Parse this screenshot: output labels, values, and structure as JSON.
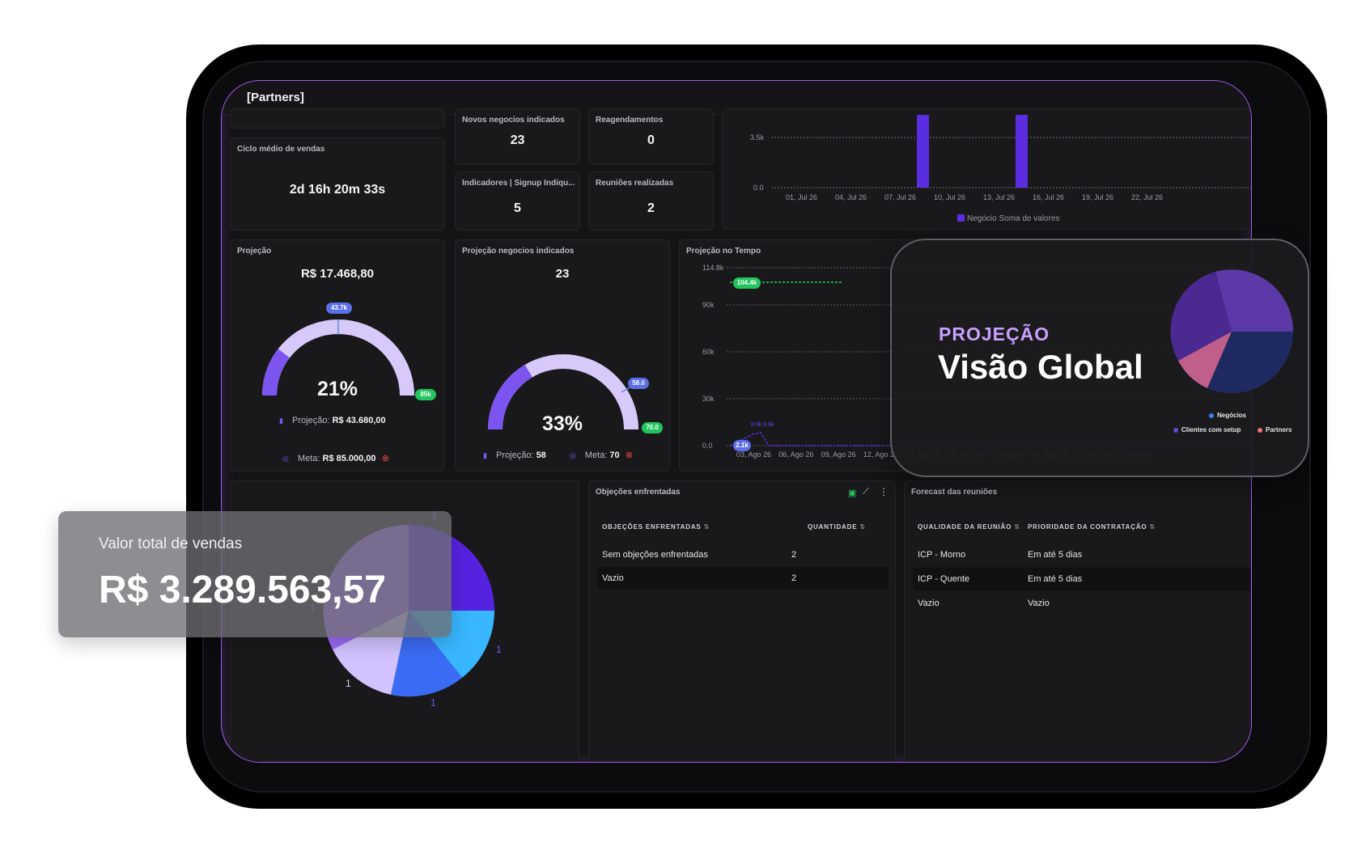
{
  "app": {
    "title": "[Partners]"
  },
  "kpis": {
    "ciclo_label": "Ciclo médio de vendas",
    "ciclo_value": "2d 16h 20m 33s",
    "novos_label": "Novos negocios indicados",
    "novos_value": "23",
    "reag_label": "Reagendamentos",
    "reag_value": "0",
    "ind_label": "Indicadores | Signup Indiqu...",
    "ind_value": "5",
    "reun_label": "Reuniões realizadas",
    "reun_value": "2"
  },
  "projecao": {
    "label": "Projeção",
    "value": "R$ 17.468,80",
    "percent": "21%",
    "pct_fill": 0.21,
    "marker_pill": "43.7k",
    "end_pill": "85k",
    "proj_label": "Projeção:",
    "proj_value": "R$ 43.680,00",
    "meta_label": "Meta:",
    "meta_value": "R$ 85.000,00"
  },
  "projecao_neg": {
    "label": "Projeção negocios indicados",
    "value": "23",
    "percent": "33%",
    "pct_fill": 0.33,
    "marker_pill": "58.0",
    "end_pill": "70.0",
    "proj_label": "Projeção:",
    "proj_value": "58",
    "meta_label": "Meta:",
    "meta_value": "70"
  },
  "proj_tempo": {
    "label": "Projeção no Tempo",
    "yticks": [
      "114.8k",
      "90k",
      "60k",
      "30k",
      "0.0"
    ],
    "xticks": [
      "03, Ago 26",
      "06, Ago 26",
      "09, Ago 26",
      "12, Ago 26",
      "15, Ago 26",
      "18, Ago 26",
      "21, Ago 26",
      "24, Ago 26",
      "27, Ago 26",
      "31, Ago 26"
    ],
    "pill_top": "104.4k",
    "pill_bottom": "2.1k",
    "small_labels": "8.9k 8.9k"
  },
  "top_chart": {
    "yticks": [
      "3.5k",
      "0.0"
    ],
    "xticks": [
      "01, Jul 26",
      "04, Jul 26",
      "07, Jul 26",
      "10, Jul 26",
      "13, Jul 26",
      "16, Jul 26",
      "19, Jul 26",
      "22, Jul 26"
    ],
    "legend": "Negócio Soma de valores"
  },
  "objecoes": {
    "label": "Objeções enfrentadas",
    "col1": "OBJEÇÕES ENFRENTADAS",
    "col2": "QUANTIDADE",
    "rows": [
      {
        "a": "Sem objeções enfrentadas",
        "b": "2"
      },
      {
        "a": "Vazio",
        "b": "2"
      }
    ]
  },
  "forecast": {
    "label": "Forecast das reuniões",
    "col1": "QUALIDADE DA REUNIÃO",
    "col2": "PRIORIDADE DA CONTRATAÇÃO",
    "rows": [
      {
        "a": "ICP - Morno",
        "b": "Em até 5 dias"
      },
      {
        "a": "ICP - Quente",
        "b": "Em até 5 dias"
      },
      {
        "a": "Vazio",
        "b": "Vazio"
      }
    ]
  },
  "pie_main": {
    "labels": [
      "3",
      "1",
      "1",
      "1",
      "1"
    ]
  },
  "overlay": {
    "kicker": "PROJEÇÃO",
    "headline": "Visão Global",
    "legend": [
      {
        "name": "Negócios",
        "color": "#3b82f6"
      },
      {
        "name": "Clientes com setup",
        "color": "#5b4bd6"
      },
      {
        "name": "Partners",
        "color": "#f87171"
      }
    ]
  },
  "vendas": {
    "label": "Valor total de vendas",
    "value": "R$ 3.289.563,57"
  },
  "chart_data": {
    "type": "bar",
    "categories": [
      "01, Jul 26",
      "04, Jul 26",
      "07, Jul 26",
      "10, Jul 26",
      "13, Jul 26",
      "16, Jul 26",
      "19, Jul 26",
      "22, Jul 26"
    ],
    "series": [
      {
        "name": "Negócio Soma de valores",
        "values": [
          0,
          0,
          3500,
          0,
          3500,
          0,
          0,
          0
        ]
      }
    ],
    "ylim": [
      0,
      3500
    ]
  }
}
